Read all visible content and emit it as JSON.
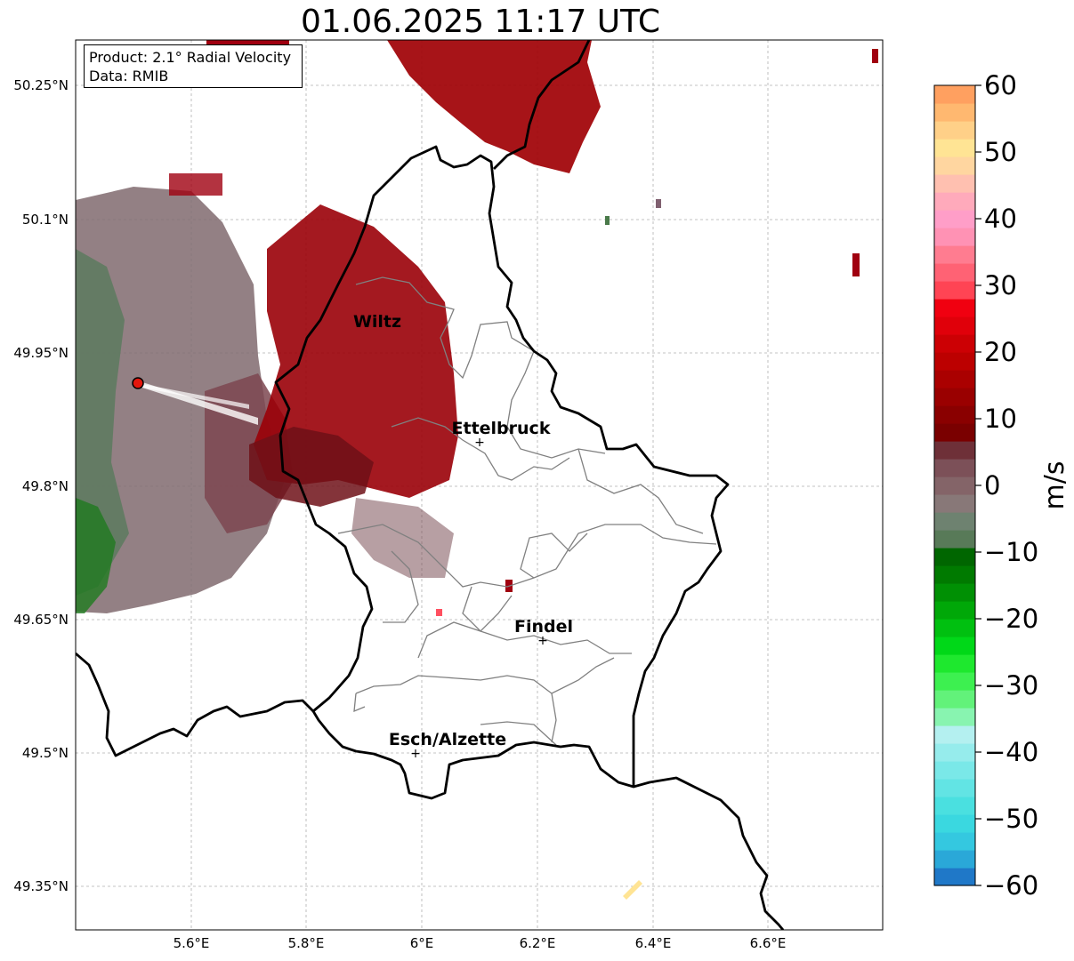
{
  "title": "01.06.2025 11:17 UTC",
  "info": {
    "product": "Product: 2.1° Radial Velocity",
    "data": "Data: RMIB"
  },
  "map": {
    "lon_range": [
      5.4,
      6.8
    ],
    "lat_range": [
      49.3,
      50.3
    ],
    "lon_ticks": [
      "5.6°E",
      "5.8°E",
      "6°E",
      "6.2°E",
      "6.4°E",
      "6.6°E"
    ],
    "lat_ticks": [
      "50.25°N",
      "50.1°N",
      "49.95°N",
      "49.8°N",
      "49.65°N",
      "49.5°N",
      "49.35°N"
    ],
    "grid": "dashed gray",
    "radar_site_color": "#e3170d",
    "cities": [
      {
        "name": "Wiltz",
        "lon": 5.93,
        "lat": 49.97
      },
      {
        "name": "Ettelbruck",
        "lon": 6.1,
        "lat": 49.85
      },
      {
        "name": "Findel",
        "lon": 6.21,
        "lat": 49.63
      },
      {
        "name": "Esch/Alzette",
        "lon": 5.99,
        "lat": 49.5
      }
    ]
  },
  "colorbar": {
    "label": "m/s",
    "range": [
      -60,
      60
    ],
    "tick_labels": [
      "60",
      "50",
      "40",
      "30",
      "20",
      "10",
      "0",
      "−10",
      "−20",
      "−30",
      "−40",
      "−50",
      "−60"
    ],
    "colors_bottom_to_top": [
      "#1f78c8",
      "#2aa8d8",
      "#34c8e0",
      "#3ad8e0",
      "#4ae0e0",
      "#62e4e4",
      "#7ae8e8",
      "#96ecec",
      "#b4f0f0",
      "#88f4b0",
      "#62f27a",
      "#3df050",
      "#1ee82e",
      "#00d818",
      "#00c010",
      "#00a808",
      "#009004",
      "#007a00",
      "#006600",
      "#587a58",
      "#6e8270",
      "#887878",
      "#846468",
      "#7c5058",
      "#6e3038",
      "#7a0000",
      "#8a0000",
      "#9a0000",
      "#aa0000",
      "#bc0000",
      "#cc0004",
      "#e0000a",
      "#f00010",
      "#ff4454",
      "#ff6274",
      "#ff7c90",
      "#ff92b4",
      "#ff9ec8",
      "#ffaabb",
      "#ffc0b0",
      "#ffd6a0",
      "#ffe494",
      "#ffd088",
      "#ffb870",
      "#ffa060"
    ]
  }
}
